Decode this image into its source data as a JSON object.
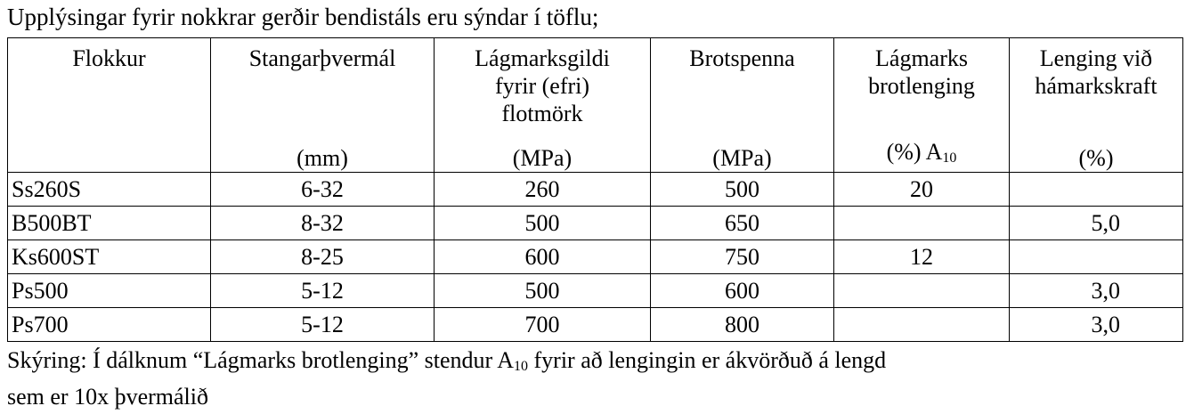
{
  "intro": "Upplýsingar fyrir nokkrar gerðir bendistáls eru sýndar í töflu;",
  "table": {
    "headers": [
      {
        "name": "Flokkur",
        "unit": "",
        "unit_sub": ""
      },
      {
        "name": "Stangarþvermál",
        "unit": "(mm)",
        "unit_sub": ""
      },
      {
        "name": "Lágmarksgildi\nfyrir (efri)\nflotmörk",
        "unit": "(MPa)",
        "unit_sub": ""
      },
      {
        "name": "Brotspenna",
        "unit": "(MPa)",
        "unit_sub": ""
      },
      {
        "name": "Lágmarks\nbrotlenging",
        "unit": "(%) A",
        "unit_sub": "10"
      },
      {
        "name": "Lenging við\nhámarkskraft",
        "unit": "(%)",
        "unit_sub": ""
      }
    ],
    "rows": [
      {
        "flokkur": "Ss260S",
        "thvermal": "6-32",
        "flotmork": "260",
        "brotspenna": "500",
        "brotlenging": "20",
        "lenging": ""
      },
      {
        "flokkur": "B500BT",
        "thvermal": "8-32",
        "flotmork": "500",
        "brotspenna": "650",
        "brotlenging": "",
        "lenging": "5,0"
      },
      {
        "flokkur": "Ks600ST",
        "thvermal": "8-25",
        "flotmork": "600",
        "brotspenna": "750",
        "brotlenging": "12",
        "lenging": ""
      },
      {
        "flokkur": "Ps500",
        "thvermal": "5-12",
        "flotmork": "500",
        "brotspenna": "600",
        "brotlenging": "",
        "lenging": "3,0"
      },
      {
        "flokkur": "Ps700",
        "thvermal": "5-12",
        "flotmork": "700",
        "brotspenna": "800",
        "brotlenging": "",
        "lenging": "3,0"
      }
    ]
  },
  "footnote": {
    "part1": "Skýring: Í dálknum “Lágmarks brotlenging” stendur A",
    "sub": "10",
    "part2": " fyrir að lengingin er ákvörðuð á lengd",
    "line2": "sem er 10x þvermálið"
  }
}
